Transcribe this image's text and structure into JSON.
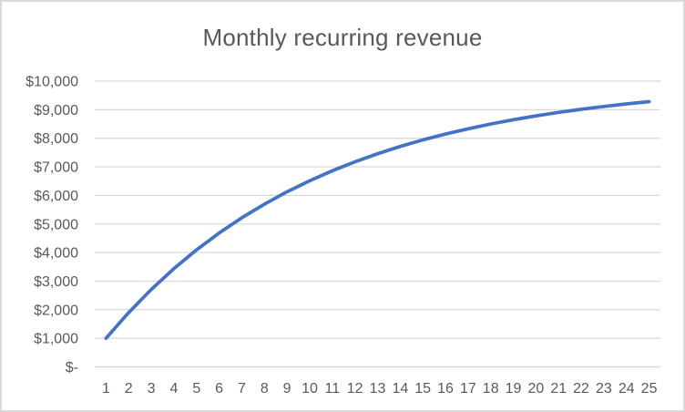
{
  "window": {
    "background_color": "#ffffff",
    "border_color": "#d9d9d9"
  },
  "chart_data": {
    "type": "line",
    "title": "Monthly recurring revenue",
    "xlabel": "",
    "ylabel": "",
    "categories": [
      1,
      2,
      3,
      4,
      5,
      6,
      7,
      8,
      9,
      10,
      11,
      12,
      13,
      14,
      15,
      16,
      17,
      18,
      19,
      20,
      21,
      22,
      23,
      24,
      25
    ],
    "series": [
      {
        "name": "Monthly recurring revenue",
        "color": "#4472C4",
        "values": [
          1000,
          1900,
          2710,
          3439,
          4095,
          4686,
          5217,
          5695,
          6126,
          6513,
          6862,
          7176,
          7458,
          7712,
          7941,
          8147,
          8332,
          8499,
          8649,
          8784,
          8906,
          9015,
          9114,
          9202,
          9282
        ]
      }
    ],
    "ylim": [
      0,
      10000
    ],
    "ytick_values": [
      0,
      1000,
      2000,
      3000,
      4000,
      5000,
      6000,
      7000,
      8000,
      9000,
      10000
    ],
    "ytick_labels": [
      "$-",
      "$1,000",
      "$2,000",
      "$3,000",
      "$4,000",
      "$5,000",
      "$6,000",
      "$7,000",
      "$8,000",
      "$9,000",
      "$10,000"
    ],
    "grid": "horizontal",
    "legend": "none",
    "gridline_color": "#d9d9d9",
    "axis_line_color": "#d9d9d9",
    "text_color": "#595959"
  }
}
